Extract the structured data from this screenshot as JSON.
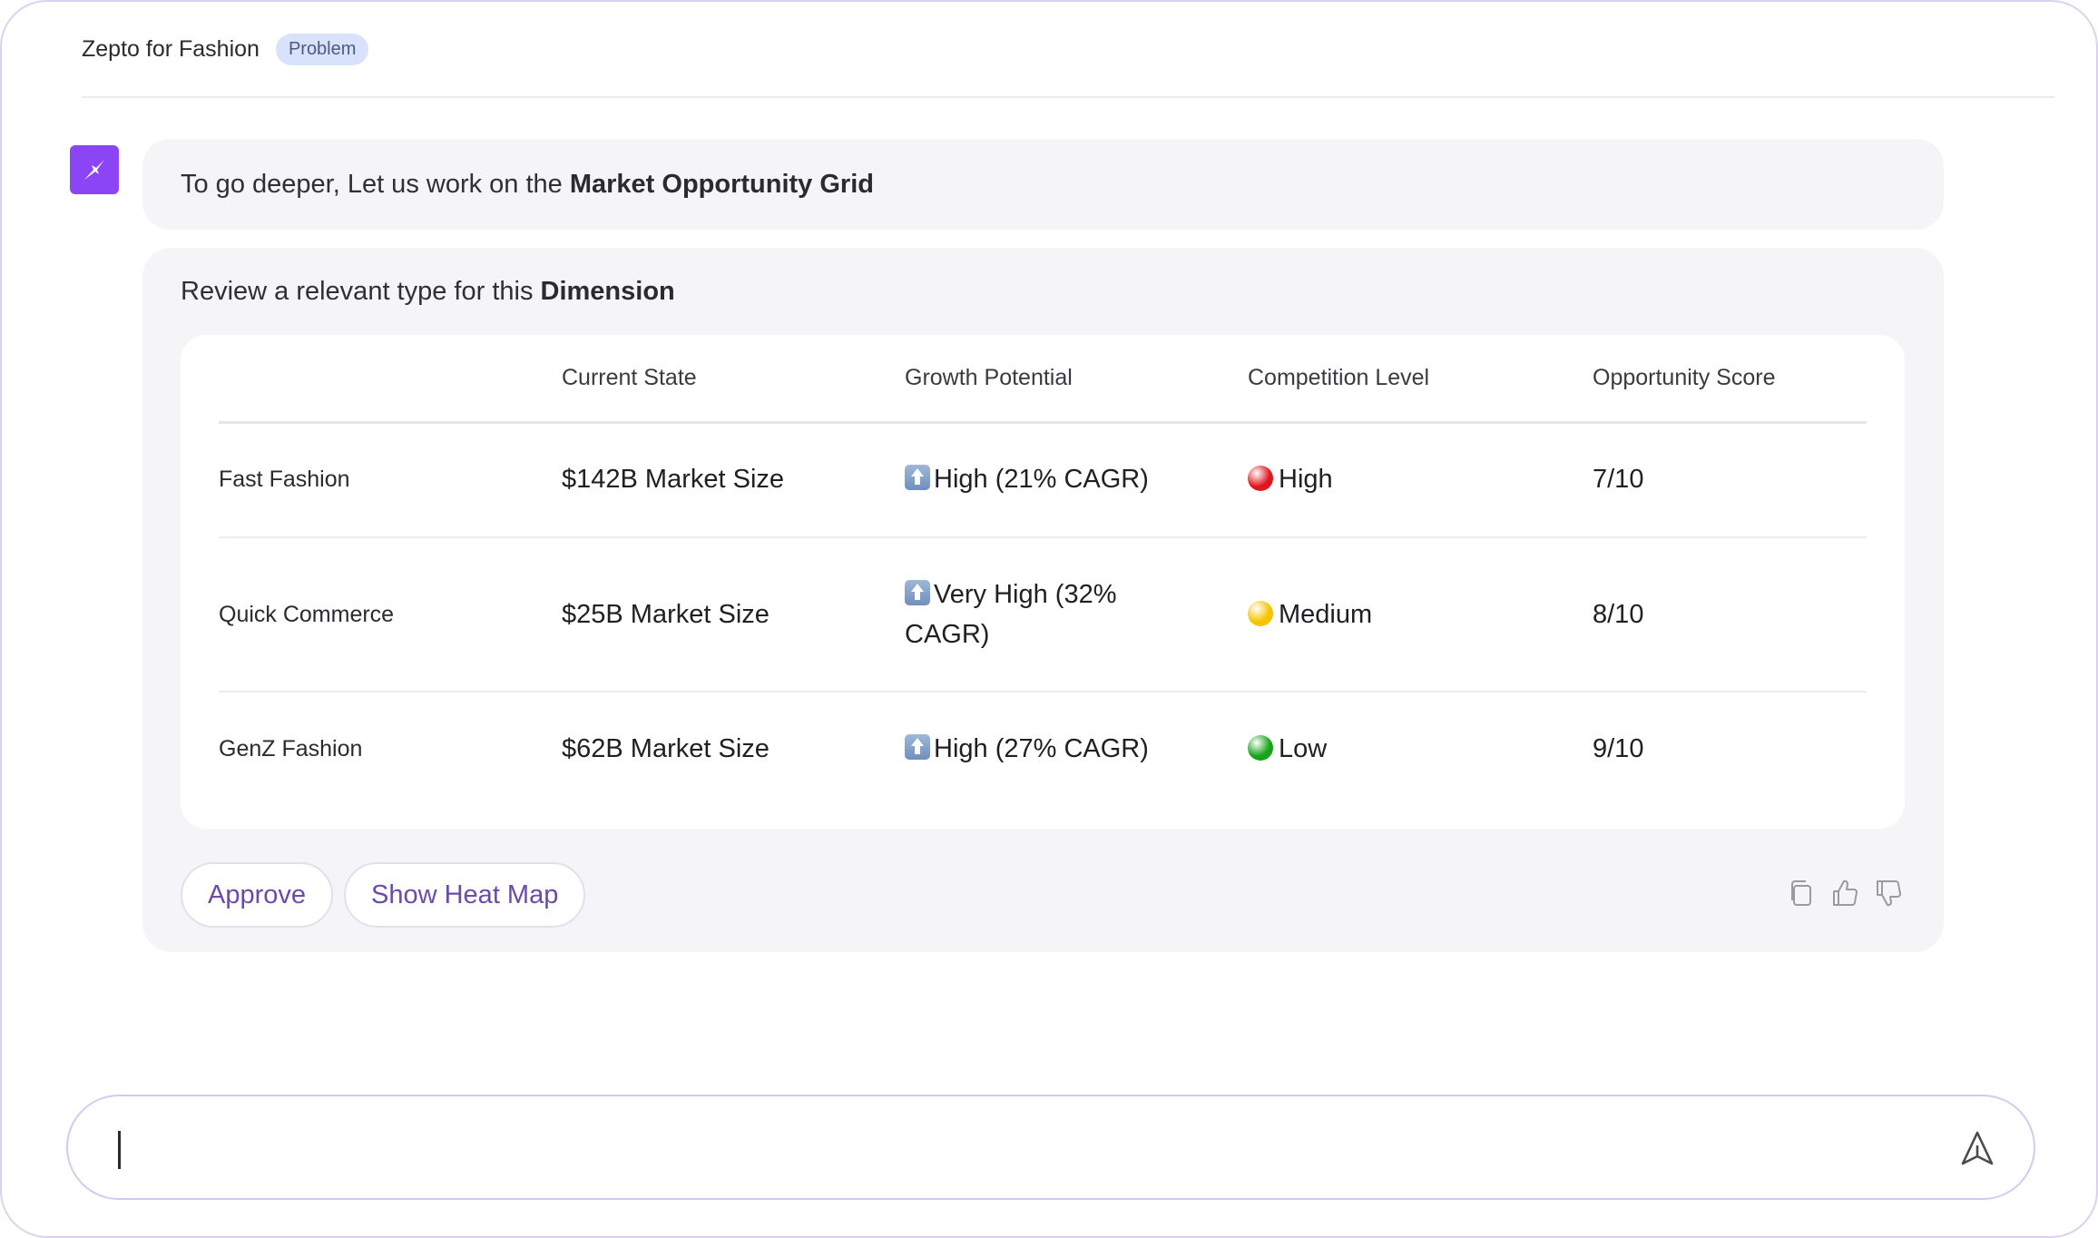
{
  "header": {
    "title": "Zepto for Fashion",
    "badge": "Problem"
  },
  "assistant": {
    "avatar_icon": "sparkle-icon",
    "avatar_color": "#8b45f5",
    "intro_prefix": "To go deeper, Let us work on the ",
    "intro_bold": "Market Opportunity Grid"
  },
  "card": {
    "heading_prefix": "Review a relevant type for this ",
    "heading_bold": "Dimension",
    "table": {
      "columns": [
        "",
        "Current State",
        "Growth Potential",
        "Competition Level",
        "Opportunity Score"
      ],
      "rows": [
        {
          "label": "Fast Fashion",
          "current": "$142B Market Size",
          "growth": "High (21% CAGR)",
          "competition": "High",
          "competition_color": "#e0161e",
          "score": "7/10"
        },
        {
          "label": "Quick Commerce",
          "current": "$25B Market Size",
          "growth": "Very High (32% CAGR)",
          "competition": "Medium",
          "competition_color": "#f5c400",
          "score": "8/10"
        },
        {
          "label": "GenZ Fashion",
          "current": "$62B Market Size",
          "growth": "High (27% CAGR)",
          "competition": "Low",
          "competition_color": "#16a51a",
          "score": "9/10"
        }
      ]
    },
    "actions": {
      "approve_label": "Approve",
      "heatmap_label": "Show Heat Map"
    },
    "feedback_icons": [
      "copy-icon",
      "thumbs-up-icon",
      "thumbs-down-icon"
    ]
  },
  "composer": {
    "value": "",
    "send_icon": "send-icon"
  }
}
